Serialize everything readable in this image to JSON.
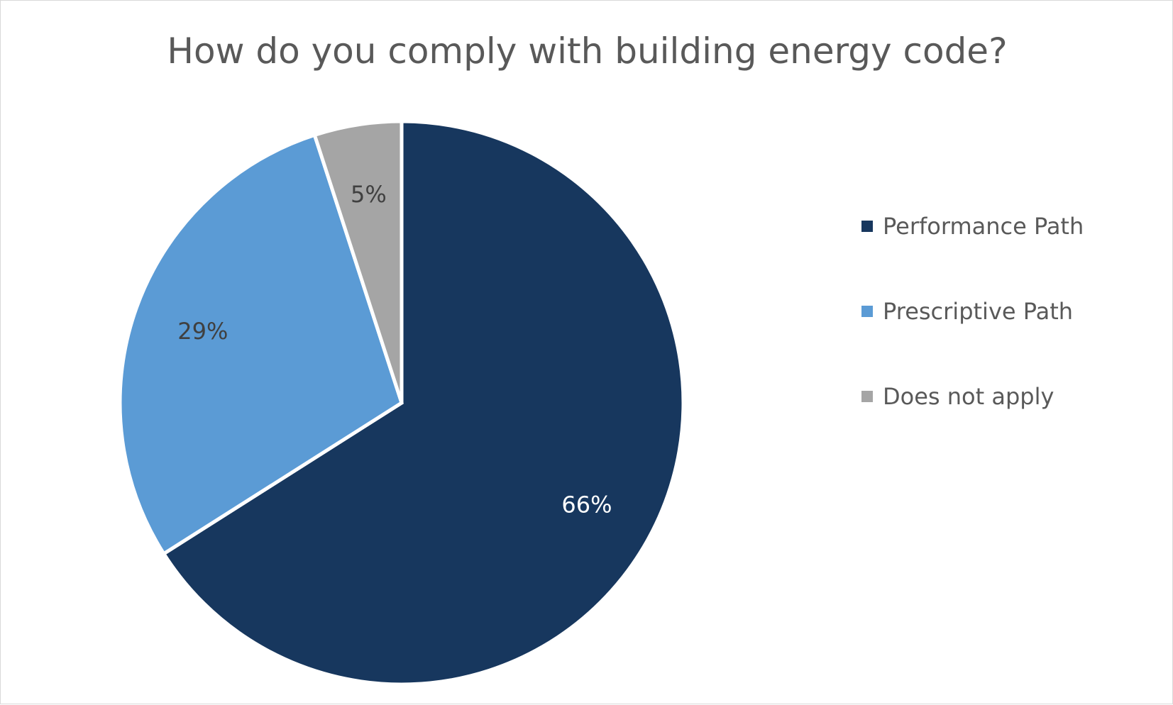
{
  "chart_data": {
    "type": "pie",
    "title": "How do you comply with building energy code?",
    "categories": [
      "Performance Path",
      "Prescriptive Path",
      "Does not apply"
    ],
    "values": [
      66,
      29,
      5
    ],
    "data_labels": [
      "66%",
      "29%",
      "5%"
    ],
    "colors": [
      "#17375e",
      "#5b9bd5",
      "#a5a5a5"
    ],
    "label_colors": [
      "#ffffff",
      "#404040",
      "#404040"
    ],
    "legend_position": "right",
    "start_angle": "12 o'clock",
    "direction": "clockwise"
  }
}
